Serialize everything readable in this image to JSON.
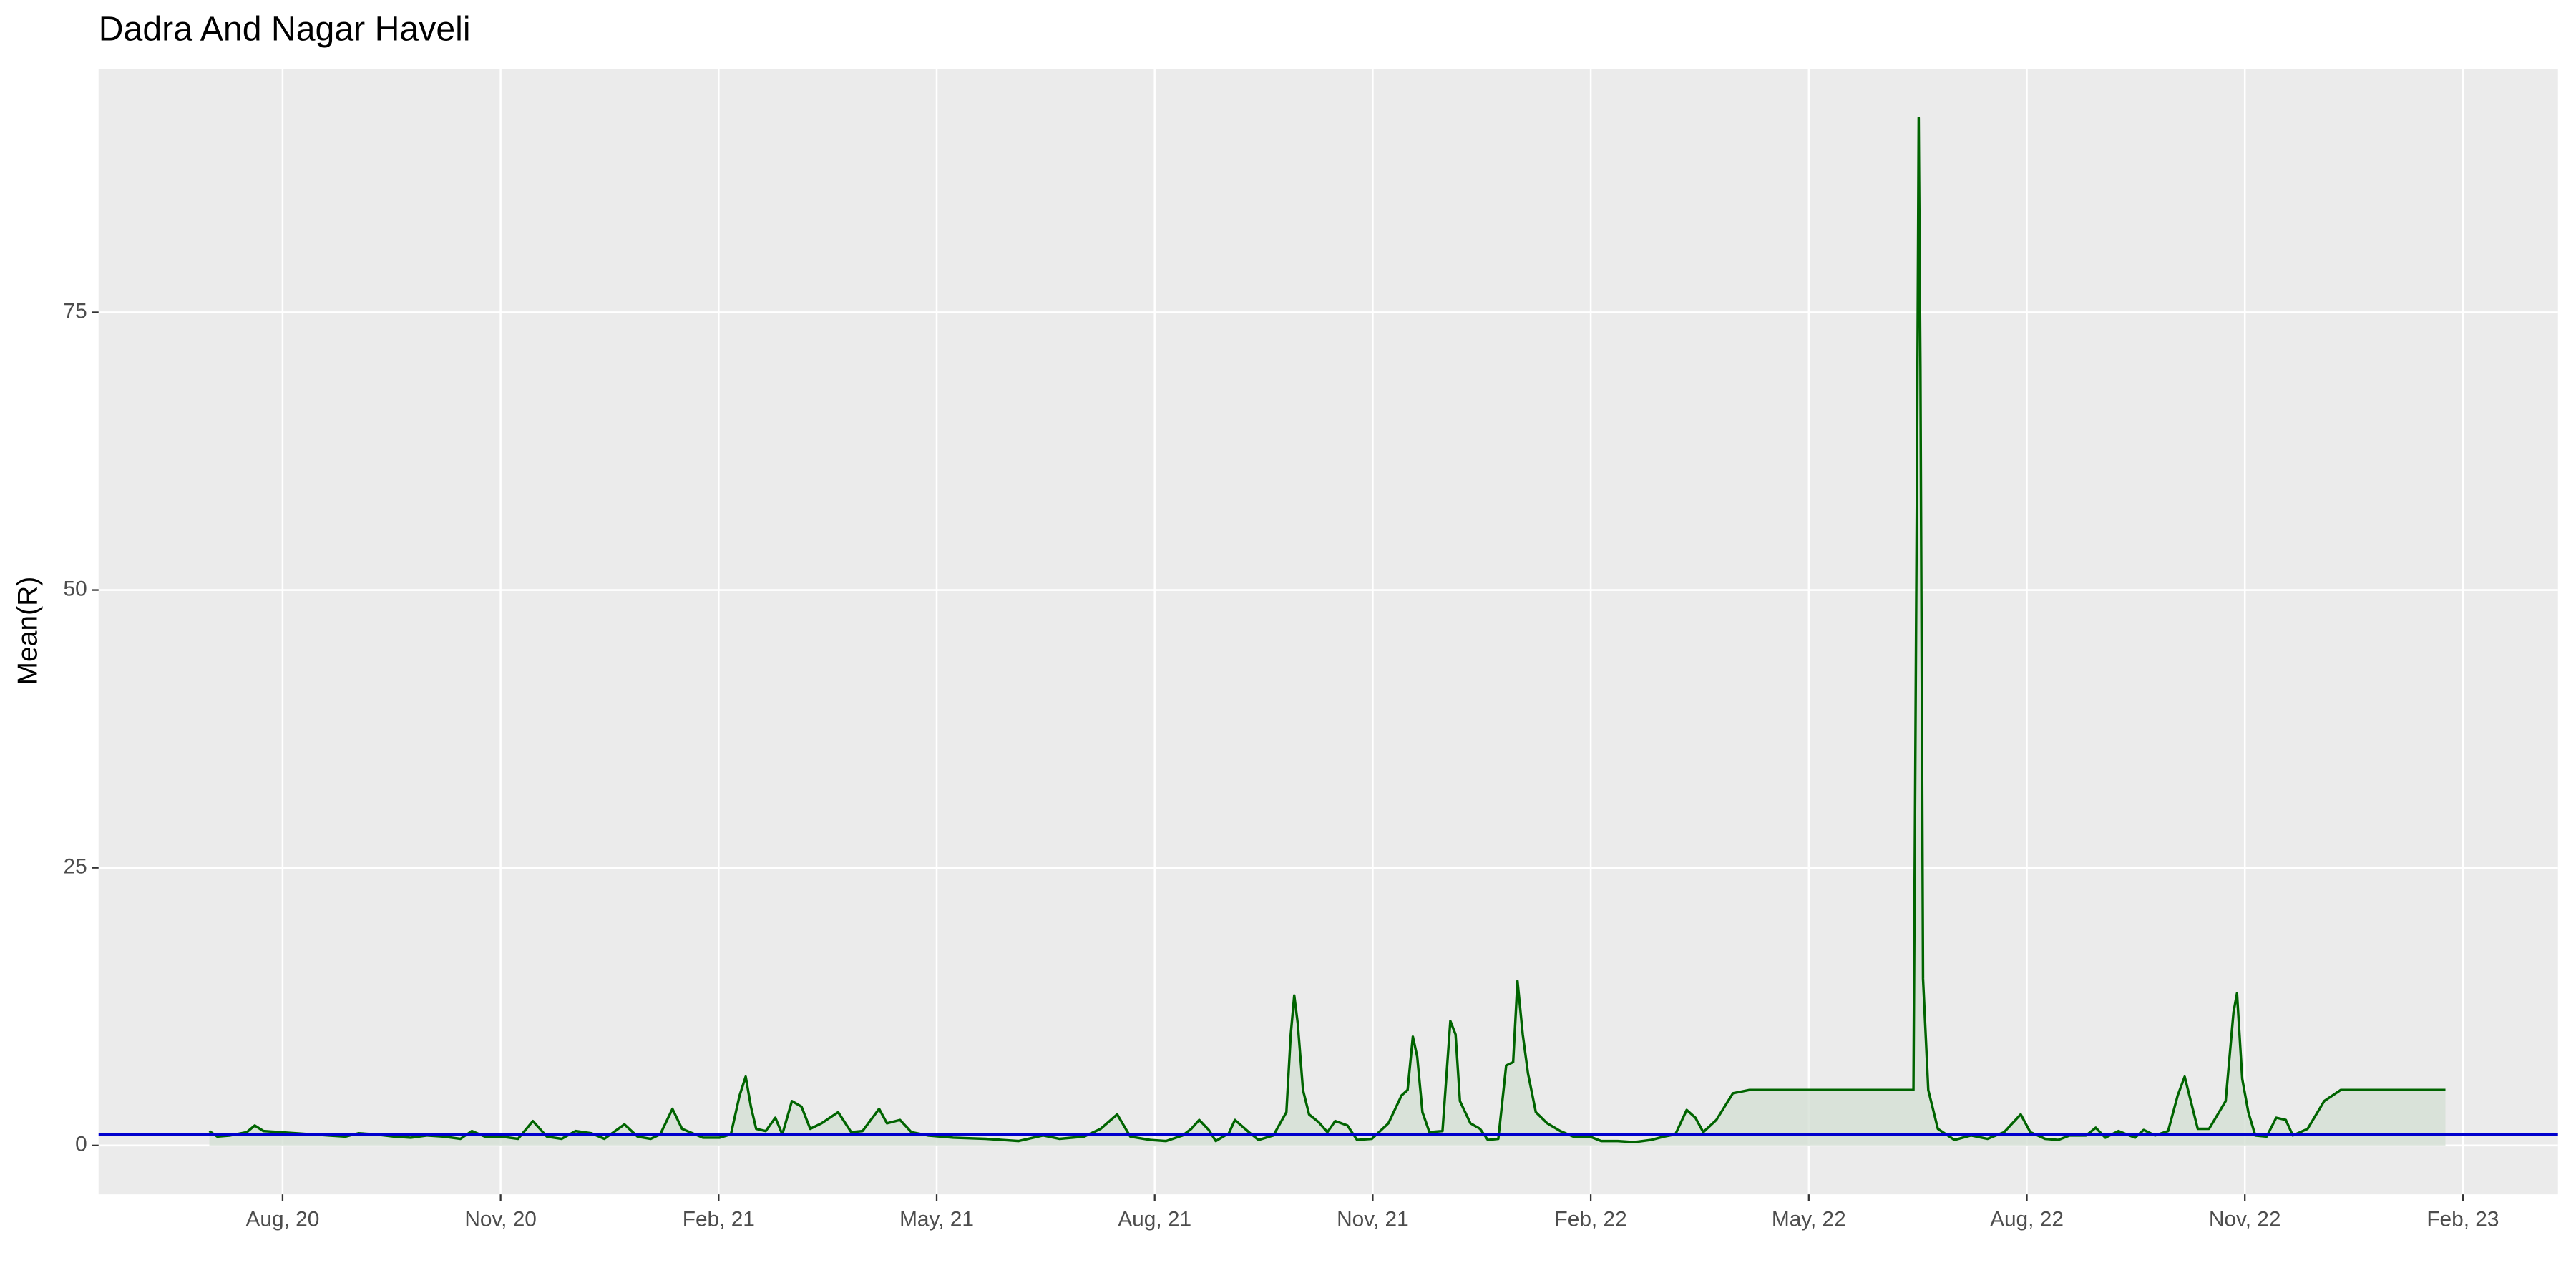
{
  "chart_data": {
    "type": "line",
    "title": "Dadra And Nagar Haveli",
    "y_label": "Mean(R)",
    "x": [
      2020.499,
      2020.508,
      2020.523,
      2020.542,
      2020.551,
      2020.561,
      2020.58,
      2020.598,
      2020.617,
      2020.636,
      2020.655,
      2020.67,
      2020.689,
      2020.711,
      2020.73,
      2020.749,
      2020.768,
      2020.787,
      2020.8,
      2020.815,
      2020.834,
      2020.853,
      2020.87,
      2020.886,
      2020.903,
      2020.919,
      2020.937,
      2020.952,
      2020.975,
      2020.99,
      2021.005,
      2021.016,
      2021.03,
      2021.041,
      2021.05,
      2021.065,
      2021.084,
      2021.097,
      2021.107,
      2021.114,
      2021.12,
      2021.126,
      2021.137,
      2021.148,
      2021.156,
      2021.167,
      2021.178,
      2021.188,
      2021.201,
      2021.22,
      2021.235,
      2021.248,
      2021.267,
      2021.276,
      2021.291,
      2021.304,
      2021.323,
      2021.352,
      2021.389,
      2021.427,
      2021.455,
      2021.474,
      2021.502,
      2021.521,
      2021.54,
      2021.555,
      2021.578,
      2021.596,
      2021.615,
      2021.625,
      2021.634,
      2021.645,
      2021.653,
      2021.668,
      2021.675,
      2021.691,
      2021.702,
      2021.719,
      2021.734,
      2021.739,
      2021.743,
      2021.747,
      2021.753,
      2021.76,
      2021.771,
      2021.781,
      2021.79,
      2021.804,
      2021.815,
      2021.832,
      2021.851,
      2021.866,
      2021.873,
      2021.879,
      2021.884,
      2021.89,
      2021.898,
      2021.913,
      2021.922,
      2021.928,
      2021.933,
      2021.945,
      2021.956,
      2021.965,
      2021.977,
      2021.986,
      2021.994,
      2021.999,
      2022.005,
      2022.011,
      2022.02,
      2022.033,
      2022.048,
      2022.063,
      2022.082,
      2022.095,
      2022.114,
      2022.133,
      2022.152,
      2022.167,
      2022.18,
      2022.193,
      2022.203,
      2022.212,
      2022.227,
      2022.246,
      2022.265,
      2022.331,
      2022.406,
      2022.453,
      2022.457,
      2022.459,
      2022.461,
      2022.464,
      2022.47,
      2022.481,
      2022.5,
      2022.519,
      2022.538,
      2022.557,
      2022.576,
      2022.587,
      2022.604,
      2022.619,
      2022.632,
      2022.651,
      2022.662,
      2022.673,
      2022.688,
      2022.707,
      2022.717,
      2022.73,
      2022.745,
      2022.756,
      2022.764,
      2022.771,
      2022.779,
      2022.792,
      2022.811,
      2022.82,
      2022.824,
      2022.83,
      2022.837,
      2022.845,
      2022.858,
      2022.869,
      2022.88,
      2022.888,
      2022.905,
      2022.924,
      2022.943,
      2023.009,
      2023.063
    ],
    "series": [
      {
        "color": "#006400",
        "fill_color": "#d4e0d4",
        "values": [
          1.3,
          0.8,
          0.9,
          1.2,
          1.8,
          1.3,
          1.2,
          1.1,
          1.0,
          0.9,
          0.8,
          1.1,
          1.0,
          0.8,
          0.7,
          0.9,
          0.8,
          0.6,
          1.3,
          0.8,
          0.8,
          0.6,
          2.2,
          0.8,
          0.6,
          1.3,
          1.1,
          0.6,
          1.9,
          0.8,
          0.6,
          1.0,
          3.3,
          1.5,
          1.2,
          0.7,
          0.7,
          1.0,
          4.5,
          6.2,
          3.5,
          1.5,
          1.3,
          2.5,
          1.0,
          4.0,
          3.5,
          1.5,
          2.0,
          3.0,
          1.2,
          1.3,
          3.3,
          2.0,
          2.3,
          1.2,
          0.9,
          0.7,
          0.6,
          0.4,
          0.9,
          0.6,
          0.8,
          1.5,
          2.8,
          0.8,
          0.5,
          0.4,
          0.9,
          1.5,
          2.3,
          1.4,
          0.4,
          1.1,
          2.3,
          1.2,
          0.5,
          0.9,
          3.0,
          10,
          13.5,
          11,
          5,
          2.8,
          2.1,
          1.2,
          2.2,
          1.8,
          0.5,
          0.6,
          2.0,
          4.5,
          5.0,
          9.8,
          8.0,
          3.0,
          1.2,
          1.3,
          11.2,
          10,
          4.0,
          2.0,
          1.5,
          0.5,
          0.6,
          7.2,
          7.5,
          14.8,
          10,
          6.5,
          3.0,
          2.0,
          1.3,
          0.8,
          0.8,
          0.4,
          0.4,
          0.3,
          0.5,
          0.8,
          1.0,
          3.2,
          2.5,
          1.2,
          2.3,
          4.7,
          5.0,
          5.0,
          5.0,
          5.0,
          60,
          92.5,
          70,
          15,
          5.0,
          1.5,
          0.5,
          0.9,
          0.6,
          1.2,
          2.8,
          1.2,
          0.6,
          0.5,
          0.9,
          0.9,
          1.6,
          0.7,
          1.3,
          0.7,
          1.4,
          0.9,
          1.3,
          4.5,
          6.2,
          4.0,
          1.5,
          1.5,
          4.0,
          12.0,
          13.7,
          6.0,
          3.0,
          0.9,
          0.8,
          2.5,
          2.3,
          0.9,
          1.5,
          4.0,
          5.0,
          5.0,
          5.0
        ]
      }
    ],
    "hline": {
      "value": 1,
      "color": "#0000cd"
    },
    "xlim": [
      2020.372,
      2023.192
    ],
    "xticks": [
      {
        "value": 2020.583,
        "label": "Aug, 20"
      },
      {
        "value": 2020.833,
        "label": "Nov, 20"
      },
      {
        "value": 2021.083,
        "label": "Feb, 21"
      },
      {
        "value": 2021.333,
        "label": "May, 21"
      },
      {
        "value": 2021.583,
        "label": "Aug, 21"
      },
      {
        "value": 2021.833,
        "label": "Nov, 21"
      },
      {
        "value": 2022.083,
        "label": "Feb, 22"
      },
      {
        "value": 2022.333,
        "label": "May, 22"
      },
      {
        "value": 2022.583,
        "label": "Aug, 22"
      },
      {
        "value": 2022.833,
        "label": "Nov, 22"
      },
      {
        "value": 2023.083,
        "label": "Feb, 23"
      }
    ],
    "ylim": [
      -4.4,
      96.9
    ],
    "yticks": [
      0,
      25,
      50,
      75
    ],
    "grid": true
  }
}
